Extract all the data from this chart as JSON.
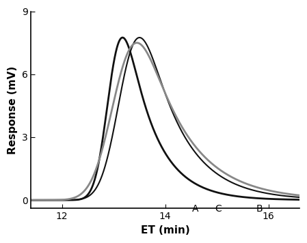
{
  "title": "",
  "xlabel": "ET (min)",
  "ylabel": "Response (mV)",
  "xlim": [
    11.4,
    16.6
  ],
  "ylim": [
    -0.4,
    9
  ],
  "yticks": [
    0,
    3,
    6,
    9
  ],
  "xticks": [
    12,
    14,
    16
  ],
  "curves": [
    {
      "label": "A",
      "mu": 12.75,
      "sigma": 0.38,
      "lambda": 1.8,
      "peak_scale": 7.75,
      "color": "#111111",
      "linewidth": 2.0
    },
    {
      "label": "B",
      "mu": 13.05,
      "sigma": 0.42,
      "lambda": 1.4,
      "peak_scale": 7.75,
      "color": "#111111",
      "linewidth": 1.5
    },
    {
      "label": "C",
      "mu": 13.0,
      "sigma": 0.42,
      "lambda": 1.2,
      "peak_scale": 7.5,
      "color": "#888888",
      "linewidth": 2.0
    }
  ],
  "label_positions": {
    "A": [
      14.58,
      -0.2
    ],
    "C": [
      15.02,
      -0.2
    ],
    "B": [
      15.82,
      -0.2
    ]
  },
  "label_fontsize": 10,
  "axis_fontsize": 11,
  "tick_fontsize": 10,
  "background_color": "#ffffff"
}
